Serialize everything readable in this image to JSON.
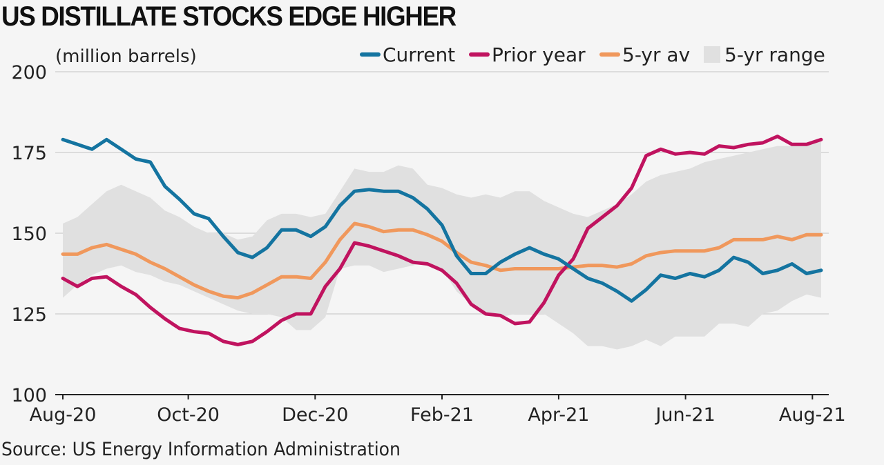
{
  "title": "US DISTILLATE STOCKS EDGE HIGHER",
  "source": "Source: US Energy Information Administration",
  "chart_data": {
    "type": "line",
    "unit_label": "(million barrels)",
    "ylim": [
      100,
      200
    ],
    "yticks": [
      100,
      125,
      150,
      175,
      200
    ],
    "xlim": [
      0,
      52
    ],
    "xticks": [
      {
        "pos": 0,
        "label": "Aug-20"
      },
      {
        "pos": 8.6,
        "label": "Oct-20"
      },
      {
        "pos": 17.3,
        "label": "Dec-20"
      },
      {
        "pos": 26,
        "label": "Feb-21"
      },
      {
        "pos": 34,
        "label": "Apr-21"
      },
      {
        "pos": 42.7,
        "label": "Jun-21"
      },
      {
        "pos": 51.4,
        "label": "Aug-21"
      }
    ],
    "grid": true,
    "legend_position": "top-right",
    "range": {
      "name": "5-yr range",
      "color": "#e0e0e0",
      "upper": [
        153,
        155,
        159,
        163,
        165,
        163,
        161,
        157,
        155,
        152,
        150,
        150,
        148,
        149,
        154,
        156,
        156,
        155,
        156,
        163,
        170,
        169,
        169,
        171,
        170,
        165,
        164,
        162,
        161,
        162,
        161,
        163,
        163,
        160,
        158,
        156,
        155,
        157,
        159,
        162,
        166,
        168,
        169,
        170,
        172,
        173,
        174,
        175,
        176,
        177,
        177,
        178,
        179
      ],
      "lower": [
        130,
        134,
        137,
        139,
        140,
        138,
        137,
        135,
        134,
        132,
        130,
        128,
        126,
        125,
        125,
        124,
        120,
        120,
        124,
        139,
        140,
        140,
        138,
        139,
        140,
        141,
        139,
        132,
        128,
        125,
        124,
        125,
        125,
        125,
        122,
        119,
        115,
        115,
        114,
        115,
        117,
        115,
        118,
        118,
        118,
        122,
        122,
        121,
        125,
        126,
        129,
        131,
        130
      ]
    },
    "series": [
      {
        "name": "Current",
        "color": "#1474a0",
        "values": [
          179,
          177.5,
          176,
          179,
          176,
          173,
          172,
          164.5,
          160.5,
          156,
          154.5,
          149,
          144,
          142.5,
          145.5,
          151,
          151,
          149,
          152,
          158.5,
          163,
          163.5,
          163,
          163,
          161,
          157.5,
          152.5,
          143,
          137.5,
          137.5,
          141,
          143.5,
          145.5,
          143.5,
          142,
          139,
          136,
          134.5,
          132,
          129,
          132.5,
          137,
          136,
          137.5,
          136.5,
          138.5,
          142.5,
          141,
          137.5,
          138.5,
          140.5,
          137.5,
          138.5
        ]
      },
      {
        "name": "Prior year",
        "color": "#c0135f",
        "values": [
          136,
          133.5,
          136,
          136.5,
          133.5,
          131,
          127,
          123.5,
          120.5,
          119.5,
          119,
          116.5,
          115.5,
          116.5,
          119.5,
          123,
          125,
          125,
          133.5,
          139,
          147,
          146,
          144.5,
          143,
          141,
          140.5,
          138.5,
          134.5,
          128,
          125,
          124.5,
          122,
          122.5,
          128.5,
          137,
          142,
          151.5,
          155,
          158.5,
          164,
          174,
          176,
          174.5,
          175,
          174.5,
          177,
          176.5,
          177.5,
          178,
          180,
          177.5,
          177.5,
          179
        ]
      },
      {
        "name": "5-yr av",
        "color": "#f0985c",
        "values": [
          143.5,
          143.5,
          145.5,
          146.5,
          145,
          143.5,
          141,
          139,
          136.5,
          134,
          132,
          130.5,
          130,
          131.5,
          134,
          136.5,
          136.5,
          136,
          141,
          148,
          153,
          152,
          150.5,
          151,
          151,
          149.5,
          147.5,
          144,
          141,
          140,
          138.5,
          139,
          139,
          139,
          139,
          139.5,
          140,
          140,
          139.5,
          140.5,
          143,
          144,
          144.5,
          144.5,
          144.5,
          145.5,
          148,
          148,
          148,
          149,
          148,
          149.5,
          149.5
        ]
      }
    ]
  }
}
